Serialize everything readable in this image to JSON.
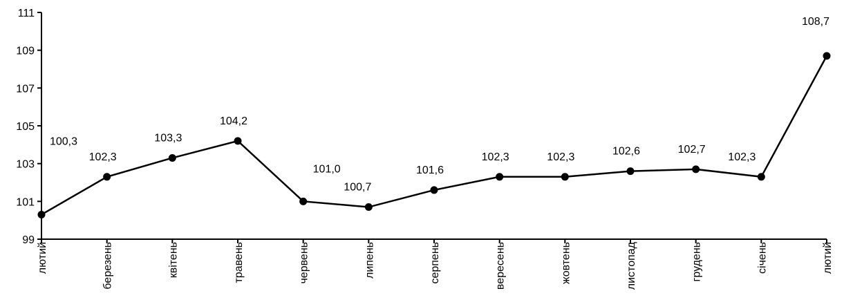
{
  "chart_data": {
    "type": "line",
    "categories": [
      "лютий",
      "березень",
      "квітень",
      "травень",
      "червень",
      "липень",
      "серпень",
      "вересень",
      "жовтень",
      "листопад",
      "грудень",
      "січень",
      "лютий"
    ],
    "values": [
      100.3,
      102.3,
      103.3,
      104.2,
      101.0,
      100.7,
      101.6,
      102.3,
      102.3,
      102.6,
      102.7,
      102.3,
      108.7
    ],
    "data_labels": [
      "100,3",
      "102,3",
      "103,3",
      "104,2",
      "101,0",
      "100,7",
      "101,6",
      "102,3",
      "102,3",
      "102,6",
      "102,7",
      "102,3",
      "108,7"
    ],
    "y_ticks": [
      "99",
      "101",
      "103",
      "105",
      "107",
      "109",
      "111"
    ],
    "ylim": [
      99,
      111
    ],
    "grid": false,
    "legend": "none",
    "line_color": "#000000",
    "marker_color": "#000000"
  }
}
